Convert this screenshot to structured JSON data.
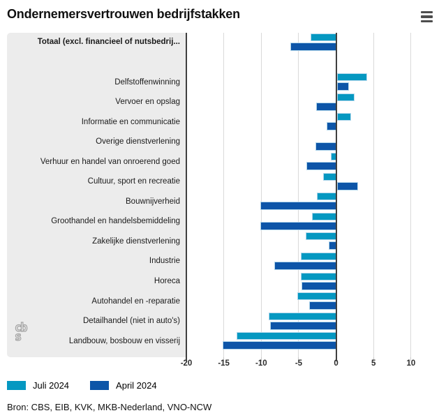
{
  "header": {
    "title": "Ondernemersvertrouwen bedrijfstakken"
  },
  "chart_data": {
    "type": "bar",
    "orientation": "horizontal",
    "title": "Ondernemersvertrouwen bedrijfstakken",
    "xlim": [
      -20,
      12
    ],
    "xticks": [
      -20,
      -15,
      -10,
      -5,
      0,
      5,
      10
    ],
    "grid": true,
    "legend_position": "bottom",
    "categories": [
      {
        "label": "Totaal (excl. financieel of nutsbedrij...",
        "bold": true
      },
      {
        "label": "Delfstoffenwinning",
        "bold": false
      },
      {
        "label": "Vervoer en opslag",
        "bold": false
      },
      {
        "label": "Informatie en communicatie",
        "bold": false
      },
      {
        "label": "Overige dienstverlening",
        "bold": false
      },
      {
        "label": "Verhuur en handel van onroerend goed",
        "bold": false
      },
      {
        "label": "Cultuur, sport en recreatie",
        "bold": false
      },
      {
        "label": "Bouwnijverheid",
        "bold": false
      },
      {
        "label": "Groothandel en handelsbemiddeling",
        "bold": false
      },
      {
        "label": "Zakelijke dienstverlening",
        "bold": false
      },
      {
        "label": "Industrie",
        "bold": false
      },
      {
        "label": "Horeca",
        "bold": false
      },
      {
        "label": "Autohandel en -reparatie",
        "bold": false
      },
      {
        "label": "Detailhandel (niet in auto's)",
        "bold": false
      },
      {
        "label": "Landbouw, bosbouw en visserij",
        "bold": false
      }
    ],
    "series": [
      {
        "name": "Juli 2024",
        "color": "#0598c1",
        "values": [
          -3.4,
          4.0,
          2.4,
          1.9,
          0.0,
          -0.7,
          -1.7,
          -2.6,
          -3.2,
          -4.1,
          -4.7,
          -4.7,
          -5.2,
          -9.0,
          -13.3
        ]
      },
      {
        "name": "April 2024",
        "color": "#0d55a8",
        "values": [
          -6.1,
          1.6,
          -2.7,
          -1.3,
          -2.8,
          -4.0,
          2.8,
          -10.1,
          -10.1,
          -1.0,
          -8.3,
          -4.6,
          -3.6,
          -8.8,
          -15.2
        ]
      }
    ]
  },
  "colors": {
    "panel": "#ececec",
    "gridline": "#d9d9d9",
    "axis": "#3f3f3f",
    "bar_outline": "#b4d8ec"
  },
  "logo": {
    "top": "cb",
    "bottom": "s"
  },
  "source": {
    "text": "Bron: CBS, EIB, KVK, MKB-Nederland, VNO-NCW"
  }
}
